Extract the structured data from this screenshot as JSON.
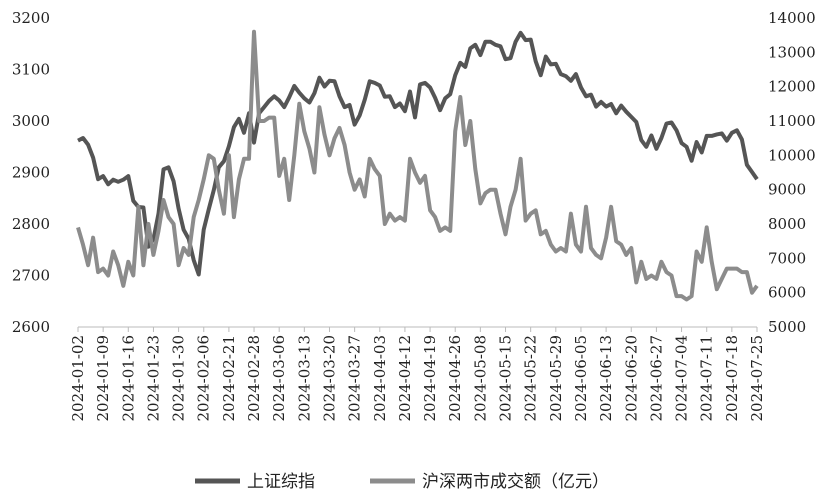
{
  "chart_data": {
    "type": "line",
    "categories": [
      "2024-01-02",
      null,
      null,
      null,
      null,
      "2024-01-09",
      null,
      null,
      null,
      null,
      "2024-01-16",
      null,
      null,
      null,
      null,
      "2024-01-23",
      null,
      null,
      null,
      null,
      "2024-01-30",
      null,
      null,
      null,
      null,
      "2024-02-06",
      null,
      null,
      null,
      null,
      "2024-02-21",
      null,
      null,
      null,
      null,
      "2024-02-28",
      null,
      null,
      null,
      null,
      "2024-03-06",
      null,
      null,
      null,
      null,
      "2024-03-13",
      null,
      null,
      null,
      null,
      "2024-03-20",
      null,
      null,
      null,
      null,
      "2024-03-27",
      null,
      null,
      null,
      null,
      "2024-04-03",
      null,
      null,
      null,
      null,
      "2024-04-12",
      null,
      null,
      null,
      null,
      "2024-04-19",
      null,
      null,
      null,
      null,
      "2024-04-26",
      null,
      null,
      null,
      null,
      "2024-05-08",
      null,
      null,
      null,
      null,
      "2024-05-15",
      null,
      null,
      null,
      null,
      "2024-05-22",
      null,
      null,
      null,
      null,
      "2024-05-29",
      null,
      null,
      null,
      null,
      "2024-06-05",
      null,
      null,
      null,
      null,
      "2024-06-13",
      null,
      null,
      null,
      null,
      "2024-06-20",
      null,
      null,
      null,
      null,
      "2024-06-27",
      null,
      null,
      null,
      null,
      "2024-07-04",
      null,
      null,
      null,
      null,
      "2024-07-11",
      null,
      null,
      null,
      null,
      "2024-07-18",
      null,
      null,
      null,
      null,
      "2024-07-25"
    ],
    "series": [
      {
        "name": "上证综指",
        "color": "#555555",
        "values": [
          2962,
          2967,
          2954,
          2929,
          2887,
          2893,
          2877,
          2886,
          2882,
          2886,
          2893,
          2845,
          2833,
          2832,
          2756,
          2770,
          2820,
          2906,
          2910,
          2883,
          2830,
          2789,
          2771,
          2730,
          2702,
          2789,
          2829,
          2866,
          2910,
          2922,
          2951,
          2988,
          3004,
          2977,
          3015,
          2958,
          3015,
          3027,
          3039,
          3048,
          3040,
          3027,
          3046,
          3068,
          3055,
          3044,
          3036,
          3054,
          3084,
          3067,
          3078,
          3077,
          3048,
          3027,
          3031,
          2993,
          3011,
          3041,
          3077,
          3074,
          3069,
          3047,
          3048,
          3027,
          3034,
          3019,
          3057,
          3007,
          3071,
          3074,
          3065,
          3045,
          3021,
          3044,
          3052,
          3089,
          3113,
          3105,
          3141,
          3148,
          3128,
          3154,
          3154,
          3148,
          3145,
          3120,
          3122,
          3154,
          3171,
          3157,
          3158,
          3116,
          3089,
          3125,
          3110,
          3111,
          3091,
          3087,
          3078,
          3091,
          3065,
          3048,
          3051,
          3028,
          3037,
          3028,
          3033,
          3015,
          3030,
          3018,
          3008,
          2998,
          2963,
          2950,
          2972,
          2946,
          2967,
          2995,
          2997,
          2982,
          2957,
          2950,
          2923,
          2959,
          2939,
          2971,
          2971,
          2974,
          2976,
          2962,
          2977,
          2982,
          2964,
          2915,
          2901,
          2887
        ]
      },
      {
        "name": "沪深两市成交额（亿元）",
        "color": "#8c8c8c",
        "axis": "y2",
        "values": [
          7900,
          7400,
          6800,
          7600,
          6600,
          6700,
          6500,
          7200,
          6800,
          6200,
          6900,
          6500,
          8500,
          6800,
          8000,
          7100,
          7800,
          8700,
          8200,
          8000,
          6800,
          7300,
          7100,
          8200,
          8700,
          9300,
          10000,
          9900,
          9000,
          8300,
          10000,
          8200,
          9300,
          9900,
          9900,
          13600,
          11000,
          11000,
          11100,
          11100,
          9400,
          9900,
          8700,
          10000,
          11500,
          10700,
          10200,
          9500,
          11400,
          10600,
          10000,
          10500,
          10800,
          10300,
          9500,
          9000,
          9300,
          8800,
          9900,
          9600,
          9400,
          8000,
          8300,
          8100,
          8200,
          8100,
          9900,
          9500,
          9200,
          9400,
          8400,
          8200,
          7800,
          7900,
          7800,
          10700,
          11700,
          10300,
          11000,
          9600,
          8600,
          8900,
          9000,
          9000,
          8300,
          7700,
          8500,
          9000,
          9900,
          8100,
          8300,
          8400,
          7700,
          7800,
          7400,
          7200,
          7300,
          7200,
          8300,
          7400,
          7200,
          8500,
          7300,
          7100,
          7000,
          7600,
          8500,
          7500,
          7400,
          7100,
          7300,
          6300,
          6900,
          6400,
          6500,
          6400,
          6900,
          6600,
          6500,
          5900,
          5900,
          5800,
          5900,
          7200,
          6900,
          7900,
          6900,
          6100,
          6400,
          6700,
          6700,
          6700,
          6600,
          6600,
          6000,
          6200
        ]
      }
    ],
    "ylim": [
      2600,
      3200
    ],
    "yticks": [
      2600,
      2700,
      2800,
      2900,
      3000,
      3100,
      3200
    ],
    "y2lim": [
      5000,
      14000
    ],
    "y2ticks": [
      5000,
      6000,
      7000,
      8000,
      9000,
      10000,
      11000,
      12000,
      13000,
      14000
    ],
    "legend": "bottom"
  }
}
